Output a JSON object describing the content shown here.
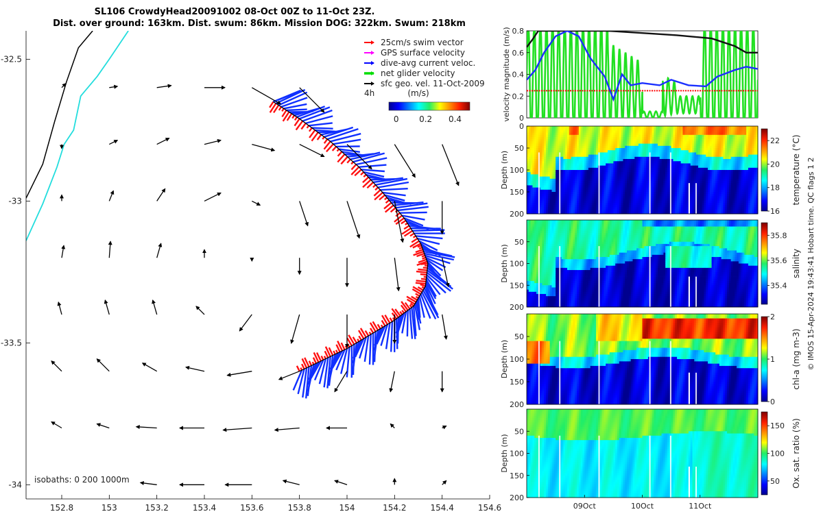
{
  "title": {
    "line1": "SL106 CrowdyHead20091002 08-Oct 00Z to 11-Oct 23Z.",
    "line2": "Dist. over ground: 163km. Dist. swum: 86km. Mission DOG: 322km. Swum: 218km"
  },
  "chart_data": [
    {
      "type": "scatter",
      "name": "map",
      "xlim": [
        152.65,
        154.6
      ],
      "ylim": [
        -34.05,
        -32.4
      ],
      "x_ticks": [
        "152.8",
        "153",
        "153.2",
        "153.4",
        "153.6",
        "153.8",
        "154",
        "154.2",
        "154.4",
        "154.6"
      ],
      "x_tick_values": [
        152.8,
        153.0,
        153.2,
        153.4,
        153.6,
        153.8,
        154.0,
        154.2,
        154.4,
        154.6
      ],
      "y_ticks": [
        "-32.5",
        "-33",
        "-33.5",
        "-34"
      ],
      "y_tick_values": [
        -32.5,
        -33.0,
        -33.5,
        -34.0
      ],
      "legend": [
        {
          "label": "25cm/s swim vector",
          "color": "#ff0000"
        },
        {
          "label": "GPS surface velocity",
          "color": "#ff00ff"
        },
        {
          "label": "dive-avg current veloc.",
          "color": "#0000ff"
        },
        {
          "label": "net glider velocity",
          "color": "#00dd00"
        },
        {
          "label": "sfc geo. vel. 11-Oct-2009",
          "color": "#000000"
        }
      ],
      "scale_label": "4h",
      "colorbar": {
        "label": "(m/s)",
        "ticks": [
          "0",
          "0.2",
          "0.4"
        ],
        "tick_values": [
          0,
          0.2,
          0.4
        ],
        "range": [
          -0.05,
          0.5
        ]
      },
      "isobaths_label": "isobaths: 0   200  1000m",
      "track": [
        [
          153.69,
          -32.65
        ],
        [
          153.8,
          -32.71
        ],
        [
          153.93,
          -32.79
        ],
        [
          154.05,
          -32.88
        ],
        [
          154.15,
          -32.97
        ],
        [
          154.24,
          -33.06
        ],
        [
          154.31,
          -33.15
        ],
        [
          154.34,
          -33.22
        ],
        [
          154.33,
          -33.3
        ],
        [
          154.28,
          -33.37
        ],
        [
          154.2,
          -33.42
        ],
        [
          154.1,
          -33.47
        ],
        [
          154.0,
          -33.52
        ],
        [
          153.9,
          -33.56
        ],
        [
          153.8,
          -33.6
        ]
      ],
      "coast": [
        [
          152.65,
          -32.99
        ],
        [
          152.72,
          -32.87
        ],
        [
          152.77,
          -32.72
        ],
        [
          152.82,
          -32.58
        ],
        [
          152.87,
          -32.46
        ],
        [
          152.93,
          -32.4
        ]
      ],
      "isobath200": [
        [
          152.65,
          -33.14
        ],
        [
          152.72,
          -33.01
        ],
        [
          152.78,
          -32.88
        ],
        [
          152.81,
          -32.8
        ],
        [
          152.85,
          -32.75
        ],
        [
          152.88,
          -32.63
        ],
        [
          152.95,
          -32.56
        ],
        [
          153.0,
          -32.5
        ],
        [
          153.08,
          -32.4
        ]
      ],
      "currents": [
        [
          152.8,
          -32.6,
          0.01,
          0.01
        ],
        [
          153.0,
          -32.6,
          0.02,
          0.003
        ],
        [
          153.2,
          -32.6,
          0.035,
          0.005
        ],
        [
          153.4,
          -32.6,
          0.05,
          0.0
        ],
        [
          153.6,
          -32.6,
          0.07,
          -0.04
        ],
        [
          153.8,
          -32.6,
          0.06,
          -0.06
        ],
        [
          152.8,
          -32.8,
          0.0,
          -0.01
        ],
        [
          153.0,
          -32.8,
          0.02,
          0.01
        ],
        [
          153.2,
          -32.8,
          0.03,
          0.015
        ],
        [
          153.4,
          -32.8,
          0.04,
          0.01
        ],
        [
          153.6,
          -32.8,
          0.055,
          -0.015
        ],
        [
          153.8,
          -32.8,
          0.06,
          -0.03
        ],
        [
          154.0,
          -32.8,
          0.06,
          -0.06
        ],
        [
          154.2,
          -32.8,
          0.05,
          -0.08
        ],
        [
          154.4,
          -32.8,
          0.04,
          -0.1
        ],
        [
          152.8,
          -33.0,
          0.0,
          0.015
        ],
        [
          153.0,
          -33.0,
          0.01,
          0.025
        ],
        [
          153.2,
          -33.0,
          0.02,
          0.03
        ],
        [
          153.4,
          -33.0,
          0.04,
          0.02
        ],
        [
          153.6,
          -33.0,
          0.02,
          -0.01
        ],
        [
          153.8,
          -33.0,
          0.02,
          -0.06
        ],
        [
          154.0,
          -33.0,
          0.03,
          -0.09
        ],
        [
          154.2,
          -33.0,
          0.02,
          -0.1
        ],
        [
          154.4,
          -33.0,
          0.0,
          -0.08
        ],
        [
          152.8,
          -33.2,
          0.005,
          0.03
        ],
        [
          153.0,
          -33.2,
          0.003,
          0.04
        ],
        [
          153.2,
          -33.2,
          0.01,
          0.035
        ],
        [
          153.4,
          -33.2,
          0.0,
          0.02
        ],
        [
          153.6,
          -33.2,
          0.0,
          -0.008
        ],
        [
          153.8,
          -33.2,
          0.0,
          -0.04
        ],
        [
          154.0,
          -33.2,
          0.0,
          -0.07
        ],
        [
          154.2,
          -33.2,
          0.01,
          -0.08
        ],
        [
          154.4,
          -33.2,
          0.015,
          -0.07
        ],
        [
          152.8,
          -33.4,
          -0.008,
          0.03
        ],
        [
          153.0,
          -33.4,
          -0.01,
          0.035
        ],
        [
          153.2,
          -33.4,
          -0.01,
          0.035
        ],
        [
          153.4,
          -33.4,
          -0.02,
          0.02
        ],
        [
          153.6,
          -33.4,
          -0.03,
          -0.04
        ],
        [
          153.8,
          -33.4,
          -0.02,
          -0.07
        ],
        [
          154.0,
          -33.4,
          0.0,
          -0.08
        ],
        [
          154.2,
          -33.4,
          0.0,
          -0.07
        ],
        [
          154.4,
          -33.4,
          0.01,
          -0.06
        ],
        [
          152.8,
          -33.6,
          -0.025,
          0.025
        ],
        [
          153.0,
          -33.6,
          -0.03,
          0.03
        ],
        [
          153.2,
          -33.6,
          -0.035,
          0.02
        ],
        [
          153.4,
          -33.6,
          -0.045,
          0.01
        ],
        [
          153.6,
          -33.6,
          -0.06,
          -0.01
        ],
        [
          153.8,
          -33.6,
          -0.05,
          -0.02
        ],
        [
          154.0,
          -33.6,
          -0.03,
          -0.05
        ],
        [
          154.2,
          -33.6,
          -0.01,
          -0.05
        ],
        [
          154.4,
          -33.6,
          0.0,
          -0.05
        ],
        [
          152.8,
          -33.8,
          -0.025,
          0.015
        ],
        [
          153.0,
          -33.8,
          -0.03,
          0.01
        ],
        [
          153.2,
          -33.8,
          -0.05,
          0.003
        ],
        [
          153.4,
          -33.8,
          -0.06,
          0.0
        ],
        [
          153.6,
          -33.8,
          -0.07,
          -0.005
        ],
        [
          153.8,
          -33.8,
          -0.06,
          -0.005
        ],
        [
          154.0,
          -33.8,
          -0.05,
          0.0
        ],
        [
          154.2,
          -33.8,
          -0.01,
          0.01
        ],
        [
          154.4,
          -33.8,
          0.01,
          0.005
        ],
        [
          153.2,
          -34.0,
          -0.04,
          0.005
        ],
        [
          153.4,
          -34.0,
          -0.06,
          0.0
        ],
        [
          153.6,
          -34.0,
          -0.065,
          0.0
        ],
        [
          153.8,
          -34.0,
          -0.04,
          0.01
        ],
        [
          154.0,
          -34.0,
          -0.03,
          0.01
        ],
        [
          154.2,
          -34.0,
          0.0,
          0.015
        ],
        [
          154.4,
          -34.0,
          0.01,
          0.01
        ]
      ]
    },
    {
      "type": "line",
      "name": "velocity",
      "ylabel": "velocity magnitude (m/s)",
      "ylim": [
        0,
        0.8
      ],
      "y_ticks": [
        "0",
        "0.2",
        "0.4",
        "0.6",
        "0.8"
      ],
      "y_tick_values": [
        0,
        0.2,
        0.4,
        0.6,
        0.8
      ],
      "xlim": [
        0,
        4
      ],
      "swim_speed": 0.25,
      "gps_surface": [
        [
          0,
          0.65
        ],
        [
          0.1,
          0.72
        ],
        [
          0.2,
          0.8
        ],
        [
          0.5,
          0.8
        ],
        [
          0.9,
          0.8
        ],
        [
          1.4,
          0.8
        ],
        [
          2.0,
          0.78
        ],
        [
          2.6,
          0.76
        ],
        [
          3.2,
          0.73
        ],
        [
          3.6,
          0.66
        ],
        [
          3.8,
          0.6
        ],
        [
          4.0,
          0.6
        ]
      ],
      "current": [
        [
          0,
          0.35
        ],
        [
          0.15,
          0.44
        ],
        [
          0.3,
          0.6
        ],
        [
          0.5,
          0.75
        ],
        [
          0.7,
          0.82
        ],
        [
          0.9,
          0.75
        ],
        [
          1.1,
          0.55
        ],
        [
          1.35,
          0.38
        ],
        [
          1.5,
          0.17
        ],
        [
          1.65,
          0.4
        ],
        [
          1.8,
          0.3
        ],
        [
          2.0,
          0.32
        ],
        [
          2.3,
          0.3
        ],
        [
          2.5,
          0.35
        ],
        [
          2.8,
          0.3
        ],
        [
          3.1,
          0.29
        ],
        [
          3.3,
          0.38
        ],
        [
          3.6,
          0.44
        ],
        [
          3.8,
          0.47
        ],
        [
          4.0,
          0.45
        ]
      ]
    },
    {
      "type": "heatmap",
      "name": "temperature",
      "ylabel": "Depth (m)",
      "clabel": "temperature (°C)",
      "crange": [
        16,
        23
      ],
      "cticks": [
        "16",
        "18",
        "20",
        "22"
      ],
      "cticks_values": [
        16,
        18,
        20,
        22
      ],
      "depth_ticks": [
        "0",
        "50",
        "100",
        "150",
        "200"
      ],
      "depth_values": [
        0,
        50,
        100,
        150,
        200
      ]
    },
    {
      "type": "heatmap",
      "name": "salinity",
      "ylabel": "Depth (m)",
      "clabel": "salinity",
      "crange": [
        35.25,
        35.9
      ],
      "cticks": [
        "35.4",
        "35.6",
        "35.8"
      ],
      "cticks_values": [
        35.4,
        35.6,
        35.8
      ],
      "depth_ticks": [
        "50",
        "100",
        "150",
        "200"
      ],
      "depth_values": [
        50,
        100,
        150,
        200
      ]
    },
    {
      "type": "heatmap",
      "name": "chlorophyll",
      "ylabel": "Depth (m)",
      "clabel": "chl-a (mg m-3)",
      "crange": [
        0,
        2
      ],
      "cticks": [
        "0",
        "1",
        "2"
      ],
      "cticks_values": [
        0,
        1,
        2
      ],
      "depth_ticks": [
        "50",
        "100",
        "150",
        "200"
      ],
      "depth_values": [
        50,
        100,
        150,
        200
      ]
    },
    {
      "type": "heatmap",
      "name": "oxygen",
      "ylabel": "Depth (m)",
      "clabel": "Ox. sat. ratio (%)",
      "crange": [
        25,
        175
      ],
      "cticks": [
        "50",
        "100",
        "150"
      ],
      "cticks_values": [
        50,
        100,
        150
      ],
      "depth_ticks": [
        "50",
        "100",
        "150",
        "200"
      ],
      "depth_values": [
        50,
        100,
        150,
        200
      ],
      "x_ticks": [
        "09Oct",
        "10Oct",
        "11Oct"
      ],
      "x_tick_values": [
        1,
        2,
        3
      ]
    }
  ],
  "footer": "© IMOS 15-Apr-2024 19:43:41 Hobart time. QC flags 1  2",
  "colors": {
    "track": "#000000",
    "swim": "#ff0000",
    "current": "#0000ff",
    "net": "#00dd00"
  }
}
